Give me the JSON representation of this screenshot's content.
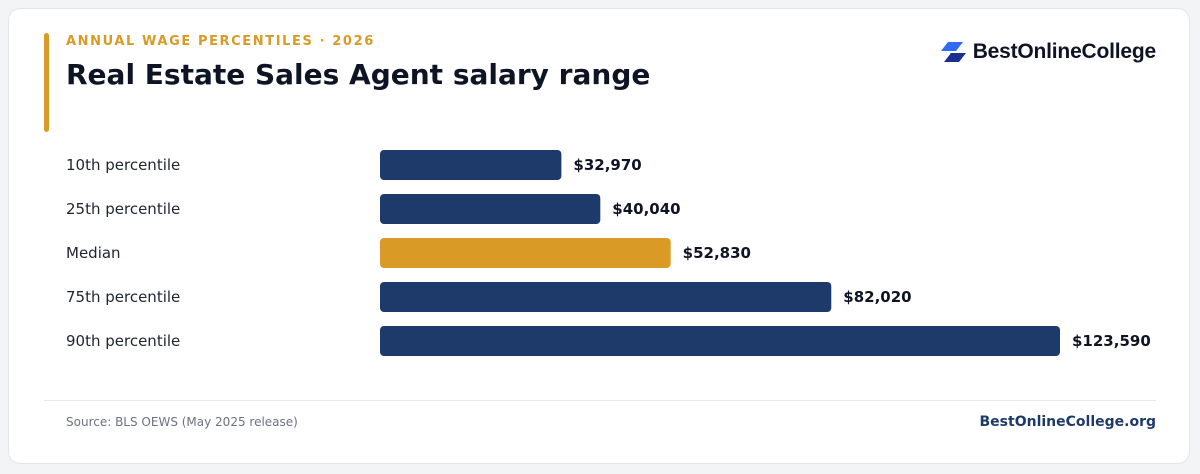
{
  "header": {
    "eyebrow": "ANNUAL WAGE PERCENTILES · 2026",
    "title": "Real Estate Sales Agent salary range"
  },
  "brand": {
    "name": "BestOnlineCollege",
    "logo_icon": "stacked-parallelogram-logo-icon",
    "logo_colors": [
      "#2f6bf5",
      "#1b2f8f"
    ]
  },
  "footer": {
    "source": "Source: BLS OEWS (May 2025 release)",
    "site": "BestOnlineCollege.org"
  },
  "colors": {
    "accent": "#d99a26",
    "bar": "#1e3a6b",
    "highlight": "#d99a26"
  },
  "chart_data": {
    "type": "bar",
    "orientation": "horizontal",
    "categories": [
      "10th percentile",
      "25th percentile",
      "Median",
      "75th percentile",
      "90th percentile"
    ],
    "values": [
      32970,
      40040,
      52830,
      82020,
      123590
    ],
    "value_labels": [
      "$32,970",
      "$40,040",
      "$52,830",
      "$82,020",
      "$123,590"
    ],
    "highlight_category": "Median",
    "xlim": [
      0,
      123590
    ],
    "grid": false,
    "legend": "none"
  }
}
